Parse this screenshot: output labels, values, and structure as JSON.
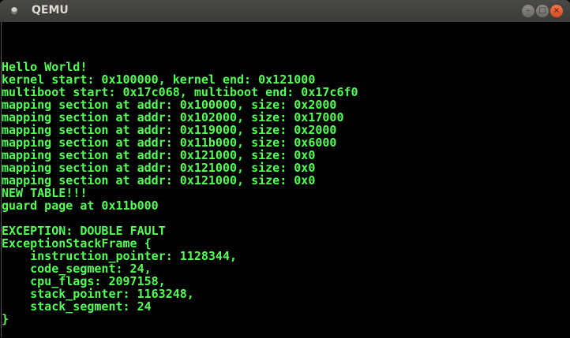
{
  "window": {
    "title": "QEMU",
    "icons": {
      "app": "qemu-icon",
      "minimize": "minimize-icon",
      "maximize": "maximize-icon",
      "close": "close-icon"
    }
  },
  "console": {
    "text_color": "#55ff55",
    "lines": [
      "",
      "",
      "",
      "Hello World!",
      "kernel start: 0x100000, kernel end: 0x121000",
      "multiboot start: 0x17c068, multiboot end: 0x17c6f0",
      "mapping section at addr: 0x100000, size: 0x2000",
      "mapping section at addr: 0x102000, size: 0x17000",
      "mapping section at addr: 0x119000, size: 0x2000",
      "mapping section at addr: 0x11b000, size: 0x6000",
      "mapping section at addr: 0x121000, size: 0x0",
      "mapping section at addr: 0x121000, size: 0x0",
      "mapping section at addr: 0x121000, size: 0x0",
      "NEW TABLE!!!",
      "guard page at 0x11b000",
      "",
      "EXCEPTION: DOUBLE FAULT",
      "ExceptionStackFrame {",
      "    instruction_pointer: 1128344,",
      "    code_segment: 24,",
      "    cpu_flags: 2097158,",
      "    stack_pointer: 1163248,",
      "    stack_segment: 24",
      "}"
    ]
  }
}
